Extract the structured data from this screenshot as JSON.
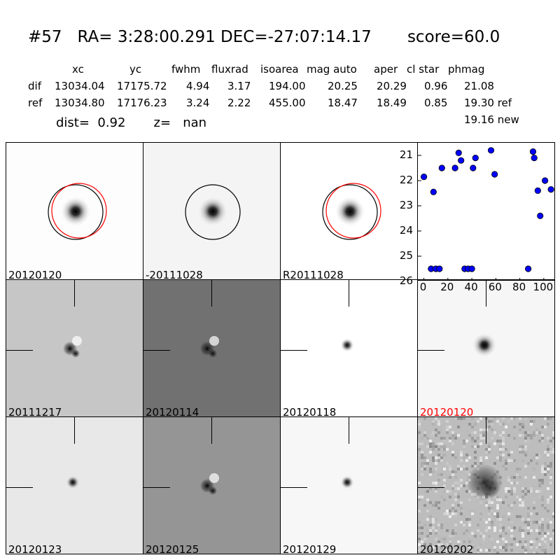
{
  "header": {
    "title": "#57   RA= 3:28:00.291 DEC=-27:07:14.17       score=60.0",
    "columns": [
      "xc",
      "yc",
      "fwhm",
      "fluxrad",
      "isoarea",
      "mag auto",
      "aper",
      "cl star",
      "phmag"
    ],
    "rows": [
      {
        "label": "dif",
        "values": [
          "13034.04",
          "17175.72",
          "4.94",
          "3.17",
          "194.00",
          "20.25",
          "20.29",
          "0.96",
          "21.08"
        ]
      },
      {
        "label": "ref",
        "values": [
          "13034.80",
          "17176.23",
          "3.24",
          "2.22",
          "455.00",
          "18.47",
          "18.49",
          "0.85",
          "19.30 ref"
        ]
      }
    ],
    "extra_phmag": "19.16 new",
    "dist_label": "dist=  0.92       z=   nan"
  },
  "panels": [
    {
      "label": "20120120",
      "bg": "#fdfdfd",
      "style": "star",
      "circle_black": true,
      "circle_red": true
    },
    {
      "label": "-20111028",
      "bg": "#f4f4f4",
      "style": "star",
      "circle_black": true,
      "circle_red": false
    },
    {
      "label": "R20111028",
      "bg": "#ffffff",
      "style": "star",
      "circle_black": true,
      "circle_red": true
    },
    {
      "label": "20111217",
      "bg": "#c6c6c6",
      "style": "dipole"
    },
    {
      "label": "20120114",
      "bg": "#717171",
      "style": "dipole"
    },
    {
      "label": "20120118",
      "bg": "#ffffff",
      "style": "small"
    },
    {
      "label": "20120120",
      "bg": "#f6f6f6",
      "style": "star2",
      "label_color": "#ff0000"
    },
    {
      "label": "20120123",
      "bg": "#e8e8e8",
      "style": "small"
    },
    {
      "label": "20120125",
      "bg": "#959595",
      "style": "dipole"
    },
    {
      "label": "20120129",
      "bg": "#f7f7f7",
      "style": "small"
    },
    {
      "label": "20120202",
      "bg": "#bdbdbd",
      "style": "noisy"
    }
  ],
  "chart_data": {
    "type": "scatter",
    "xlim": [
      -5,
      110
    ],
    "ylim": [
      26,
      20.5
    ],
    "y_inverted": true,
    "x_ticks": [
      "0",
      "20",
      "40",
      "60",
      "80",
      "100"
    ],
    "y_ticks": [
      "21",
      "22",
      "23",
      "24",
      "25",
      "26"
    ],
    "marker_color": "#0000ff",
    "points": [
      {
        "x": 0,
        "y": 21.85
      },
      {
        "x": 6,
        "y": 25.5
      },
      {
        "x": 8,
        "y": 22.45
      },
      {
        "x": 10,
        "y": 25.5
      },
      {
        "x": 13,
        "y": 25.5
      },
      {
        "x": 15,
        "y": 21.5
      },
      {
        "x": 26,
        "y": 21.5
      },
      {
        "x": 29,
        "y": 20.9
      },
      {
        "x": 31,
        "y": 21.2
      },
      {
        "x": 34,
        "y": 25.5
      },
      {
        "x": 37,
        "y": 25.5
      },
      {
        "x": 40,
        "y": 25.5
      },
      {
        "x": 41,
        "y": 21.5
      },
      {
        "x": 43,
        "y": 21.1
      },
      {
        "x": 56,
        "y": 20.8
      },
      {
        "x": 59,
        "y": 21.75
      },
      {
        "x": 87,
        "y": 25.5
      },
      {
        "x": 91,
        "y": 20.85
      },
      {
        "x": 92,
        "y": 21.1
      },
      {
        "x": 95,
        "y": 22.4
      },
      {
        "x": 97,
        "y": 23.4
      },
      {
        "x": 101,
        "y": 22.0
      },
      {
        "x": 106,
        "y": 22.35
      }
    ]
  }
}
